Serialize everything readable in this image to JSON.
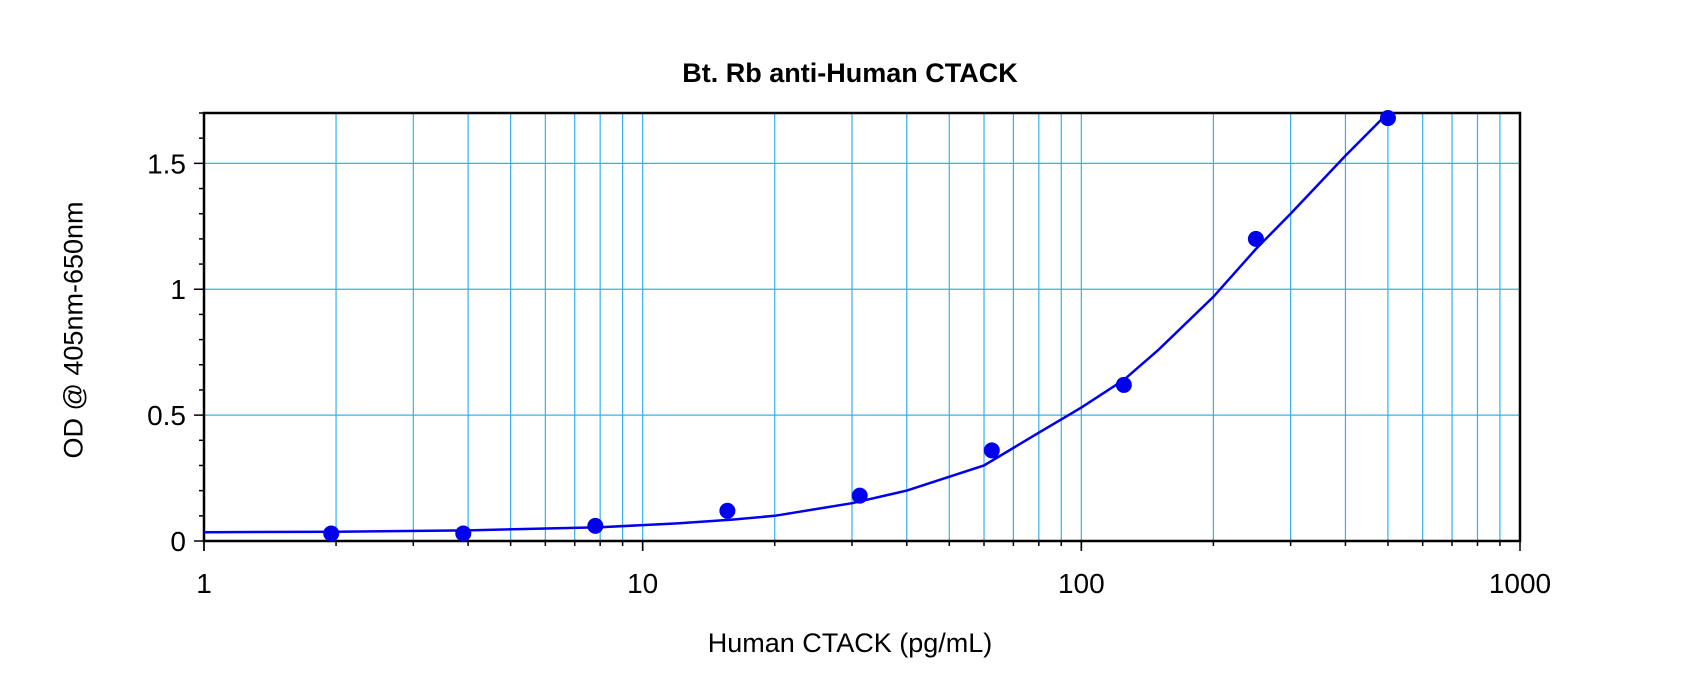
{
  "chart_data": {
    "type": "scatter",
    "title": "Bt. Rb anti-Human CTACK",
    "xlabel": "Human CTACK (pg/mL)",
    "ylabel": "OD @ 405nm-650nm",
    "x_scale": "log",
    "xlim": [
      1,
      1000
    ],
    "ylim": [
      0,
      1.7
    ],
    "x_ticks": [
      1,
      10,
      100,
      1000
    ],
    "x_tick_labels": [
      "1",
      "10",
      "100",
      "1000"
    ],
    "y_ticks": [
      0,
      0.5,
      1,
      1.5
    ],
    "y_tick_labels": [
      "0",
      "0.5",
      "1",
      "1.5"
    ],
    "grid": true,
    "legend": "none",
    "series": [
      {
        "kind": "points",
        "x": [
          1.95,
          3.9,
          7.8,
          15.6,
          31.25,
          62.5,
          125,
          250,
          500
        ],
        "y": [
          0.03,
          0.03,
          0.06,
          0.12,
          0.18,
          0.36,
          0.62,
          1.2,
          1.68
        ]
      },
      {
        "kind": "fitted-curve",
        "x": [
          1,
          2,
          4,
          8,
          12,
          16,
          20,
          30,
          40,
          60,
          80,
          100,
          125,
          150,
          200,
          250,
          300,
          400,
          500
        ],
        "y": [
          0.035,
          0.037,
          0.042,
          0.055,
          0.07,
          0.085,
          0.1,
          0.15,
          0.2,
          0.3,
          0.43,
          0.53,
          0.64,
          0.76,
          0.97,
          1.16,
          1.3,
          1.53,
          1.7
        ]
      }
    ],
    "colors": {
      "data": "#0000ee",
      "grid": "#33b2ee",
      "axes": "#000000"
    }
  }
}
